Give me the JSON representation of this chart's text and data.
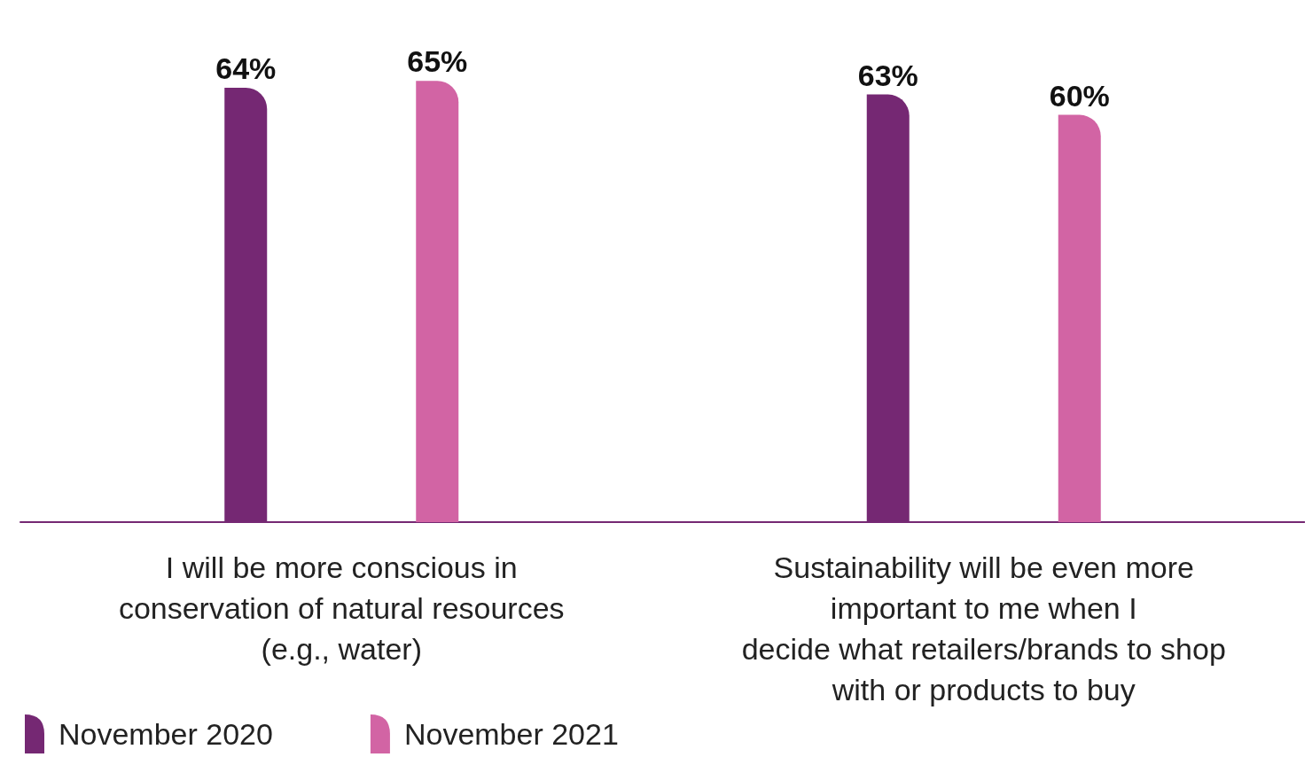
{
  "chart_data": {
    "type": "bar",
    "categories": [
      "I will be more conscious in\nconservation of natural resources\n(e.g., water)",
      "Sustainability will be even more\nimportant to me when I\ndecide what retailers/brands to shop\nwith or products to buy"
    ],
    "series": [
      {
        "name": "November 2020",
        "color": "#752873",
        "values": [
          64,
          63
        ],
        "value_labels": [
          "64%",
          "63%"
        ]
      },
      {
        "name": "November 2021",
        "color": "#d264a4",
        "values": [
          65,
          60
        ],
        "value_labels": [
          "65%",
          "60%"
        ]
      }
    ],
    "legend": "bottom left"
  }
}
